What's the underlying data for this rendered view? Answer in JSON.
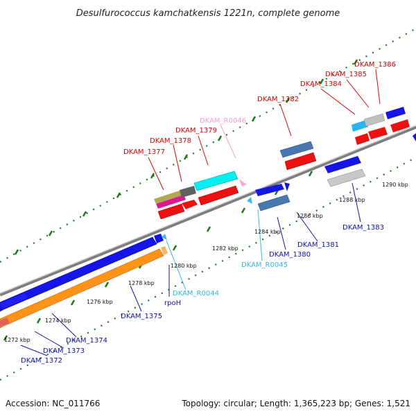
{
  "title": "Desulfurococcus kamchatkensis 1221n, complete genome",
  "footer": {
    "accession": "Accession: NC_011766",
    "topology": "Topology: circular; Length: 1,365,223 bp; Genes: 1,521"
  },
  "colors": {
    "label_top": "#dd0000",
    "label_bottom": "#1010b0",
    "label_rna_top": "#f0a0c8",
    "label_rna_bottom": "#30b8e0",
    "backbone": "#8a8a8a",
    "tick": "#1a7a1a"
  },
  "ticks": [
    {
      "label": "1272 kbp"
    },
    {
      "label": "1274 kbp"
    },
    {
      "label": "1276 kbp"
    },
    {
      "label": "1278 kbp"
    },
    {
      "label": "1280 kbp"
    },
    {
      "label": "1282 kbp"
    },
    {
      "label": "1284 kbp"
    },
    {
      "label": "1286 kbp"
    },
    {
      "label": "1288 kbp"
    },
    {
      "label": "1290 kbp"
    }
  ],
  "gene_labels_top": [
    {
      "text": "DKAM_1377",
      "kind": "cds"
    },
    {
      "text": "DKAM_1378",
      "kind": "cds"
    },
    {
      "text": "DKAM_1379",
      "kind": "cds"
    },
    {
      "text": "DKAM_R0046",
      "kind": "rna"
    },
    {
      "text": "DKAM_1382",
      "kind": "cds"
    },
    {
      "text": "DKAM_1384",
      "kind": "cds"
    },
    {
      "text": "DKAM_1385",
      "kind": "cds"
    },
    {
      "text": "DKAM_1386",
      "kind": "cds"
    }
  ],
  "gene_labels_bottom": [
    {
      "text": "DKAM_1372",
      "kind": "cds"
    },
    {
      "text": "DKAM_1373",
      "kind": "cds"
    },
    {
      "text": "DKAM_1374",
      "kind": "cds"
    },
    {
      "text": "DKAM_1375",
      "kind": "cds"
    },
    {
      "text": "rpoH",
      "kind": "cds"
    },
    {
      "text": "DKAM_R0044",
      "kind": "rna"
    },
    {
      "text": "DKAM_R0045",
      "kind": "rna"
    },
    {
      "text": "DKAM_1380",
      "kind": "cds"
    },
    {
      "text": "DKAM_1381",
      "kind": "cds"
    },
    {
      "text": "DKAM_1383",
      "kind": "cds"
    }
  ]
}
